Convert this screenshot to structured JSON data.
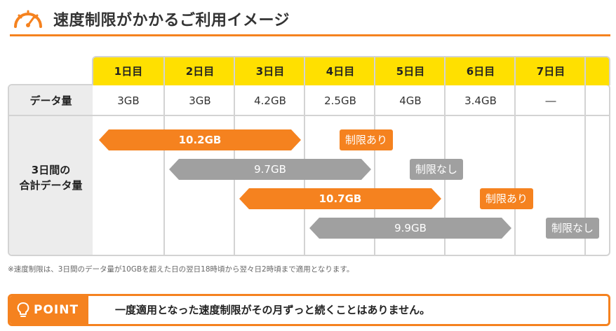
{
  "header": {
    "title": "速度制限がかかるご利用イメージ"
  },
  "colors": {
    "accent": "#f5821f",
    "header_yellow": "#ffe000",
    "gray_bar": "#a0a0a0",
    "label_bg": "#ececec",
    "border": "#d3d3d3"
  },
  "table": {
    "days": [
      "1日目",
      "2日目",
      "3日目",
      "4日目",
      "5日目",
      "6日目",
      "7日目"
    ],
    "row1_label": "データ量",
    "row1_values": [
      "3GB",
      "3GB",
      "4.2GB",
      "2.5GB",
      "4GB",
      "3.4GB",
      "―"
    ],
    "row2_label_line1": "3日間の",
    "row2_label_line2": "合計データ量",
    "periods": [
      {
        "total": "10.2GB",
        "status": "制限あり",
        "limited": true
      },
      {
        "total": "9.7GB",
        "status": "制限なし",
        "limited": false
      },
      {
        "total": "10.7GB",
        "status": "制限あり",
        "limited": true
      },
      {
        "total": "9.9GB",
        "status": "制限なし",
        "limited": false
      }
    ]
  },
  "note": "※速度制限は、3日間のデータ量が10GBを超えた日の翌日18時頃から翌々日2時頃まで適用となります。",
  "point": {
    "badge": "POINT",
    "message": "一度適用となった速度制限がその月ずっと続くことはありません。",
    "icon": "lightbulb-icon"
  }
}
